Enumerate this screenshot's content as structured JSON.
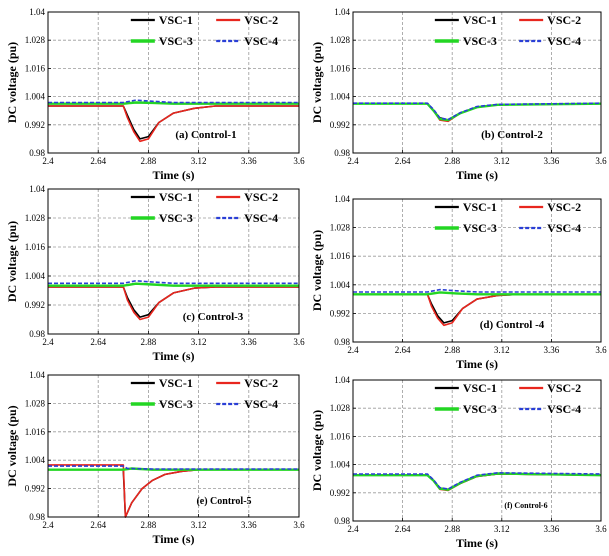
{
  "figure": {
    "colors": {
      "VSC-1": "#000000",
      "VSC-2": "#e8261e",
      "VSC-3": "#23d623",
      "VSC-4": "#2a3fd6",
      "grid": "#9a9a9a",
      "bg": "#ffffff"
    }
  },
  "chart_data": [
    {
      "type": "line",
      "panel_label": "(a) Control-1",
      "xlabel": "Time (s)",
      "ylabel": "DC voltage (pu)",
      "xlim": [
        2.4,
        3.6
      ],
      "ylim": [
        0.98,
        1.04
      ],
      "xticks": [
        "2.4",
        "2.64",
        "2.88",
        "3.12",
        "3.36",
        "3.6"
      ],
      "yticks": [
        "0.98",
        "0.992",
        "1.004",
        "1.016",
        "1.028",
        "1.04"
      ],
      "grid": true,
      "legend": [
        "VSC-1",
        "VSC-2",
        "VSC-3",
        "VSC-4"
      ],
      "series": [
        {
          "name": "VSC-1",
          "x": [
            2.4,
            2.76,
            2.78,
            2.81,
            2.84,
            2.88,
            2.93,
            3.0,
            3.1,
            3.2,
            3.3,
            3.6
          ],
          "y": [
            1.0,
            1.0,
            0.996,
            0.99,
            0.986,
            0.987,
            0.993,
            0.997,
            0.999,
            1.0,
            1.0,
            1.0
          ]
        },
        {
          "name": "VSC-2",
          "x": [
            2.4,
            2.76,
            2.78,
            2.81,
            2.84,
            2.88,
            2.93,
            3.0,
            3.1,
            3.2,
            3.3,
            3.6
          ],
          "y": [
            1.0,
            1.0,
            0.995,
            0.989,
            0.985,
            0.986,
            0.993,
            0.997,
            0.999,
            1.0,
            1.0,
            1.0
          ]
        },
        {
          "name": "VSC-3",
          "x": [
            2.4,
            2.76,
            2.82,
            2.9,
            3.0,
            3.6
          ],
          "y": [
            1.001,
            1.001,
            1.0015,
            1.0013,
            1.001,
            1.001
          ]
        },
        {
          "name": "VSC-4",
          "x": [
            2.4,
            2.76,
            2.82,
            2.9,
            3.0,
            3.6
          ],
          "y": [
            1.0015,
            1.0015,
            1.0025,
            1.002,
            1.0015,
            1.0015
          ]
        }
      ]
    },
    {
      "type": "line",
      "panel_label": "(b) Control-2",
      "xlabel": "Time (s)",
      "ylabel": "DC voltage (pu)",
      "xlim": [
        2.4,
        3.6
      ],
      "ylim": [
        0.98,
        1.04
      ],
      "xticks": [
        "2.4",
        "2.64",
        "2.88",
        "3.12",
        "3.36",
        "3.6"
      ],
      "yticks": [
        "0.98",
        "0.992",
        "1.004",
        "1.016",
        "1.028",
        "1.04"
      ],
      "grid": true,
      "legend": [
        "VSC-1",
        "VSC-2",
        "VSC-3",
        "VSC-4"
      ],
      "series": [
        {
          "name": "VSC-1",
          "x": [
            2.4,
            2.76,
            2.79,
            2.82,
            2.86,
            2.92,
            3.0,
            3.1,
            3.6
          ],
          "y": [
            1.001,
            1.001,
            0.998,
            0.995,
            0.994,
            0.997,
            0.9995,
            1.0005,
            1.001
          ]
        },
        {
          "name": "VSC-2",
          "x": [
            2.4,
            2.76,
            2.79,
            2.82,
            2.86,
            2.92,
            3.0,
            3.1,
            3.6
          ],
          "y": [
            1.001,
            1.001,
            0.998,
            0.994,
            0.9935,
            0.997,
            0.9995,
            1.0005,
            1.001
          ]
        },
        {
          "name": "VSC-3",
          "x": [
            2.4,
            2.76,
            2.79,
            2.82,
            2.86,
            2.92,
            3.0,
            3.1,
            3.6
          ],
          "y": [
            1.001,
            1.001,
            0.998,
            0.9945,
            0.994,
            0.997,
            0.9995,
            1.0005,
            1.001
          ]
        },
        {
          "name": "VSC-4",
          "x": [
            2.4,
            2.76,
            2.79,
            2.82,
            2.86,
            2.92,
            3.0,
            3.1,
            3.6
          ],
          "y": [
            1.0012,
            1.0012,
            0.9985,
            0.995,
            0.9942,
            0.9972,
            0.9998,
            1.0007,
            1.0012
          ]
        }
      ]
    },
    {
      "type": "line",
      "panel_label": "(c) Control-3",
      "xlabel": "Time (s)",
      "ylabel": "DC voltage (pu)",
      "xlim": [
        2.4,
        3.6
      ],
      "ylim": [
        0.98,
        1.04
      ],
      "xticks": [
        "2.4",
        "2.64",
        "2.88",
        "3.12",
        "3.36",
        "3.6"
      ],
      "yticks": [
        "0.98",
        "0.992",
        "1.004",
        "1.016",
        "1.028",
        "1.04"
      ],
      "grid": true,
      "legend": [
        "VSC-1",
        "VSC-2",
        "VSC-3",
        "VSC-4"
      ],
      "series": [
        {
          "name": "VSC-1",
          "x": [
            2.4,
            2.76,
            2.78,
            2.81,
            2.84,
            2.88,
            2.93,
            3.0,
            3.1,
            3.2,
            3.3,
            3.6
          ],
          "y": [
            0.9995,
            0.9995,
            0.995,
            0.99,
            0.987,
            0.988,
            0.993,
            0.997,
            0.999,
            0.9995,
            0.9995,
            0.9995
          ]
        },
        {
          "name": "VSC-2",
          "x": [
            2.4,
            2.76,
            2.78,
            2.81,
            2.84,
            2.88,
            2.93,
            3.0,
            3.1,
            3.2,
            3.3,
            3.6
          ],
          "y": [
            0.9995,
            0.9995,
            0.994,
            0.989,
            0.986,
            0.987,
            0.993,
            0.997,
            0.999,
            0.9995,
            0.9995,
            0.9995
          ]
        },
        {
          "name": "VSC-3",
          "x": [
            2.4,
            2.76,
            2.82,
            2.9,
            3.0,
            3.6
          ],
          "y": [
            1.0,
            1.0,
            1.0008,
            1.0005,
            1.0,
            1.0
          ]
        },
        {
          "name": "VSC-4",
          "x": [
            2.4,
            2.76,
            2.82,
            2.9,
            3.0,
            3.6
          ],
          "y": [
            1.001,
            1.001,
            1.002,
            1.0015,
            1.001,
            1.001
          ]
        }
      ]
    },
    {
      "type": "line",
      "panel_label": "(d) Control -4",
      "xlabel": "Time (s)",
      "ylabel": "DC voltage (pu)",
      "xlim": [
        2.4,
        3.6
      ],
      "ylim": [
        0.98,
        1.04
      ],
      "xticks": [
        "2.4",
        "2.64",
        "2.88",
        "3.12",
        "3.36",
        "3.6"
      ],
      "yticks": [
        "0.98",
        "0.992",
        "1.004",
        "1.016",
        "1.028",
        "1.04"
      ],
      "grid": true,
      "legend": [
        "VSC-1",
        "VSC-2",
        "VSC-3",
        "VSC-4"
      ],
      "series": [
        {
          "name": "VSC-1",
          "x": [
            2.4,
            2.76,
            2.78,
            2.81,
            2.84,
            2.88,
            2.93,
            3.0,
            3.1,
            3.2,
            3.3,
            3.6
          ],
          "y": [
            1.0,
            1.0,
            0.996,
            0.991,
            0.988,
            0.989,
            0.994,
            0.998,
            0.9995,
            1.0,
            1.0,
            1.0
          ]
        },
        {
          "name": "VSC-2",
          "x": [
            2.4,
            2.76,
            2.78,
            2.81,
            2.84,
            2.88,
            2.93,
            3.0,
            3.1,
            3.2,
            3.3,
            3.6
          ],
          "y": [
            1.0,
            1.0,
            0.995,
            0.99,
            0.987,
            0.988,
            0.994,
            0.998,
            0.9995,
            1.0,
            1.0,
            1.0
          ]
        },
        {
          "name": "VSC-3",
          "x": [
            2.4,
            2.76,
            2.82,
            2.9,
            3.0,
            3.6
          ],
          "y": [
            1.0,
            1.0,
            1.0008,
            1.0004,
            1.0,
            1.0
          ]
        },
        {
          "name": "VSC-4",
          "x": [
            2.4,
            2.76,
            2.82,
            2.9,
            3.0,
            3.6
          ],
          "y": [
            1.001,
            1.001,
            1.002,
            1.0015,
            1.001,
            1.001
          ]
        }
      ]
    },
    {
      "type": "line",
      "panel_label": "(e) Control-5",
      "xlabel": "Time (s)",
      "ylabel": "DC voltage (pu)",
      "xlim": [
        2.4,
        3.6
      ],
      "ylim": [
        0.98,
        1.04
      ],
      "xticks": [
        "2.4",
        "2.64",
        "2.88",
        "3.12",
        "3.36",
        "3.6"
      ],
      "yticks": [
        "0.98",
        "0.992",
        "1.004",
        "1.016",
        "1.028",
        "1.04"
      ],
      "grid": true,
      "legend": [
        "VSC-1",
        "VSC-2",
        "VSC-3",
        "VSC-4"
      ],
      "series": [
        {
          "name": "VSC-1",
          "x": [
            2.4,
            2.76,
            2.77,
            2.8,
            2.85,
            2.9,
            2.96,
            3.04,
            3.12,
            3.6
          ],
          "y": [
            1.0,
            1.0,
            0.98,
            0.986,
            0.992,
            0.9955,
            0.998,
            0.9993,
            1.0,
            1.0
          ]
        },
        {
          "name": "VSC-2",
          "x": [
            2.4,
            2.76,
            2.77,
            2.8,
            2.85,
            2.9,
            2.96,
            3.04,
            3.12,
            3.6
          ],
          "y": [
            1.002,
            1.002,
            0.98,
            0.986,
            0.992,
            0.9955,
            0.998,
            0.9993,
            1.0,
            1.0
          ]
        },
        {
          "name": "VSC-3",
          "x": [
            2.4,
            2.76,
            2.8,
            2.9,
            3.0,
            3.6
          ],
          "y": [
            1.0,
            1.0,
            1.0005,
            1.0,
            1.0,
            1.0
          ]
        },
        {
          "name": "VSC-4",
          "x": [
            2.4,
            2.76,
            2.78,
            2.9,
            3.0,
            3.6
          ],
          "y": [
            1.0015,
            1.0015,
            1.0005,
            1.0003,
            1.0003,
            1.0003
          ]
        }
      ]
    },
    {
      "type": "line",
      "panel_label": "(f) Control-6",
      "xlabel": "Time (s)",
      "ylabel": "DC voltage (pu)",
      "xlim": [
        2.4,
        3.6
      ],
      "ylim": [
        0.98,
        1.04
      ],
      "xticks": [
        "2.4",
        "2.64",
        "2.88",
        "3.12",
        "3.36",
        "3.6"
      ],
      "yticks": [
        "0.98",
        "0.992",
        "1.004",
        "1.016",
        "1.028",
        "1.04"
      ],
      "grid": true,
      "legend": [
        "VSC-1",
        "VSC-2",
        "VSC-3",
        "VSC-4"
      ],
      "series": [
        {
          "name": "VSC-1",
          "x": [
            2.4,
            2.76,
            2.79,
            2.82,
            2.86,
            2.92,
            3.0,
            3.1,
            3.6
          ],
          "y": [
            0.9995,
            0.9995,
            0.997,
            0.994,
            0.9935,
            0.996,
            0.999,
            1.0,
            0.9995
          ]
        },
        {
          "name": "VSC-2",
          "x": [
            2.4,
            2.76,
            2.79,
            2.82,
            2.86,
            2.92,
            3.0,
            3.1,
            3.6
          ],
          "y": [
            0.9995,
            0.9995,
            0.997,
            0.9935,
            0.993,
            0.996,
            0.999,
            1.0,
            0.9995
          ]
        },
        {
          "name": "VSC-3",
          "x": [
            2.4,
            2.76,
            2.79,
            2.82,
            2.86,
            2.92,
            3.0,
            3.1,
            3.6
          ],
          "y": [
            0.9995,
            0.9995,
            0.9972,
            0.9938,
            0.9933,
            0.9962,
            0.9992,
            1.0002,
            0.9995
          ]
        },
        {
          "name": "VSC-4",
          "x": [
            2.4,
            2.76,
            2.79,
            2.82,
            2.86,
            2.92,
            3.0,
            3.1,
            3.6
          ],
          "y": [
            1.0,
            1.0,
            0.9975,
            0.9942,
            0.9936,
            0.9965,
            0.9995,
            1.0005,
            1.0
          ]
        }
      ]
    }
  ]
}
